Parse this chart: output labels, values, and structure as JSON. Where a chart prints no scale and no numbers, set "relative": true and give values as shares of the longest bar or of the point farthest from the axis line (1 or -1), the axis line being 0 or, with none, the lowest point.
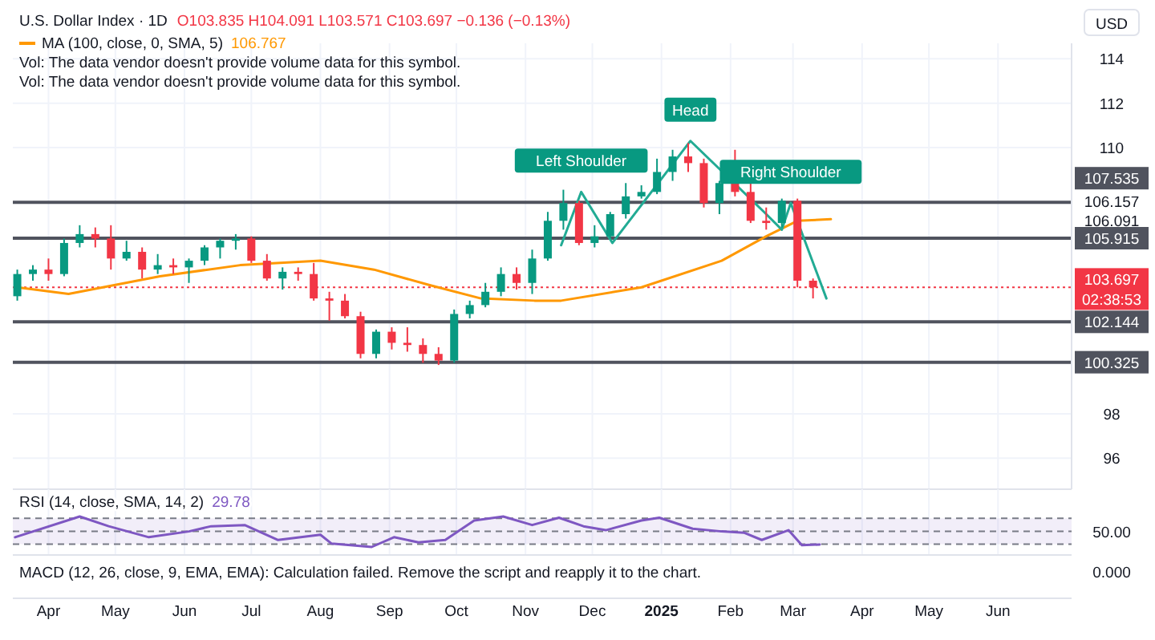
{
  "chart_data": [
    {
      "type": "candlestick",
      "title": "U.S. Dollar Index · 1D",
      "ylabel": "USD",
      "annotations": [
        "O103.835 H104.091 L103.571 C103.697 −0.136 (−0.13%)",
        "106.767",
        "Vol: The data vendor doesn't provide volume data for this symbol.",
        "Vol: The data vendor doesn't provide volume data for this symbol.",
        "106.157",
        "106.091",
        "02:38:53",
        {
          "text": "Left Shoulder",
          "x": "2024-11-26",
          "y": 108.0
        },
        {
          "text": "Head",
          "x": "2025-01-14",
          "y": 110.3
        },
        {
          "text": "Right Shoulder",
          "x": "2025-02-28",
          "y": 107.5
        }
      ],
      "x": [
        "2024-03-18",
        "2024-03-25",
        "2024-04-01",
        "2024-04-08",
        "2024-04-15",
        "2024-04-22",
        "2024-04-29",
        "2024-05-06",
        "2024-05-13",
        "2024-05-20",
        "2024-05-27",
        "2024-06-03",
        "2024-06-10",
        "2024-06-17",
        "2024-06-24",
        "2024-07-01",
        "2024-07-08",
        "2024-07-15",
        "2024-07-22",
        "2024-07-29",
        "2024-08-05",
        "2024-08-12",
        "2024-08-19",
        "2024-08-26",
        "2024-09-02",
        "2024-09-09",
        "2024-09-16",
        "2024-09-23",
        "2024-09-30",
        "2024-10-07",
        "2024-10-14",
        "2024-10-21",
        "2024-10-28",
        "2024-11-04",
        "2024-11-11",
        "2024-11-18",
        "2024-11-25",
        "2024-12-02",
        "2024-12-09",
        "2024-12-16",
        "2024-12-23",
        "2024-12-30",
        "2025-01-06",
        "2025-01-13",
        "2025-01-20",
        "2025-01-27",
        "2025-02-03",
        "2025-02-10",
        "2025-02-17",
        "2025-02-24",
        "2025-03-03",
        "2025-03-10"
      ],
      "ohlc": [
        [
          103.3,
          104.5,
          103.1,
          104.3
        ],
        [
          104.3,
          104.7,
          104.0,
          104.5
        ],
        [
          104.5,
          105.0,
          104.0,
          104.3
        ],
        [
          104.3,
          105.9,
          104.2,
          105.7
        ],
        [
          105.7,
          106.5,
          105.5,
          106.1
        ],
        [
          106.1,
          106.4,
          105.5,
          105.9
        ],
        [
          105.9,
          106.5,
          104.5,
          105.0
        ],
        [
          105.0,
          105.8,
          104.9,
          105.3
        ],
        [
          105.3,
          105.5,
          104.1,
          104.5
        ],
        [
          104.5,
          105.2,
          104.3,
          104.7
        ],
        [
          104.7,
          105.0,
          104.3,
          104.6
        ],
        [
          104.6,
          105.0,
          103.9,
          104.9
        ],
        [
          104.9,
          105.6,
          104.7,
          105.5
        ],
        [
          105.5,
          105.9,
          105.0,
          105.8
        ],
        [
          105.8,
          106.1,
          105.4,
          105.9
        ],
        [
          105.9,
          106.0,
          104.8,
          104.9
        ],
        [
          104.9,
          105.2,
          104.0,
          104.1
        ],
        [
          104.1,
          104.6,
          103.6,
          104.4
        ],
        [
          104.4,
          104.6,
          104.0,
          104.3
        ],
        [
          104.3,
          104.8,
          103.1,
          103.2
        ],
        [
          103.2,
          103.5,
          102.2,
          103.1
        ],
        [
          103.1,
          103.4,
          102.3,
          102.4
        ],
        [
          102.4,
          102.6,
          100.5,
          100.7
        ],
        [
          100.7,
          101.8,
          100.5,
          101.7
        ],
        [
          101.7,
          101.9,
          100.9,
          101.2
        ],
        [
          101.2,
          101.9,
          100.8,
          101.1
        ],
        [
          101.1,
          101.4,
          100.3,
          100.7
        ],
        [
          100.7,
          101.0,
          100.2,
          100.4
        ],
        [
          100.4,
          102.7,
          100.3,
          102.5
        ],
        [
          102.5,
          103.1,
          102.3,
          102.9
        ],
        [
          102.9,
          103.9,
          102.8,
          103.5
        ],
        [
          103.5,
          104.6,
          103.3,
          104.3
        ],
        [
          104.3,
          104.6,
          103.6,
          103.9
        ],
        [
          103.9,
          105.4,
          103.4,
          105.0
        ],
        [
          105.0,
          107.1,
          104.9,
          106.7
        ],
        [
          106.7,
          108.1,
          106.3,
          107.5
        ],
        [
          107.5,
          107.6,
          105.6,
          105.7
        ],
        [
          105.7,
          106.5,
          105.5,
          106.0
        ],
        [
          106.0,
          107.1,
          105.9,
          107.0
        ],
        [
          107.0,
          108.4,
          106.8,
          107.8
        ],
        [
          107.8,
          108.3,
          107.7,
          108.0
        ],
        [
          108.0,
          109.5,
          107.9,
          108.9
        ],
        [
          108.9,
          109.9,
          108.5,
          109.6
        ],
        [
          109.6,
          110.2,
          108.9,
          109.3
        ],
        [
          109.3,
          109.5,
          107.3,
          107.5
        ],
        [
          107.5,
          108.5,
          107.0,
          108.4
        ],
        [
          108.4,
          109.9,
          107.8,
          108.0
        ],
        [
          108.0,
          108.5,
          106.6,
          106.7
        ],
        [
          106.7,
          107.3,
          106.3,
          106.6
        ],
        [
          106.6,
          107.7,
          106.4,
          107.6
        ],
        [
          107.6,
          107.7,
          103.7,
          104.0
        ],
        [
          104.0,
          104.1,
          103.2,
          103.7
        ]
      ],
      "colors": [
        "#089981",
        "#089981",
        "#f23645",
        "#089981",
        "#089981",
        "#f23645",
        "#f23645",
        "#089981",
        "#f23645",
        "#089981",
        "#f23645",
        "#089981",
        "#089981",
        "#089981",
        "#089981",
        "#f23645",
        "#f23645",
        "#089981",
        "#f23645",
        "#f23645",
        "#f23645",
        "#f23645",
        "#f23645",
        "#089981",
        "#f23645",
        "#f23645",
        "#f23645",
        "#f23645",
        "#089981",
        "#089981",
        "#089981",
        "#089981",
        "#f23645",
        "#089981",
        "#089981",
        "#089981",
        "#f23645",
        "#089981",
        "#089981",
        "#089981",
        "#089981",
        "#089981",
        "#089981",
        "#f23645",
        "#f23645",
        "#089981",
        "#f23645",
        "#f23645",
        "#f23645",
        "#089981",
        "#f23645",
        "#f23645"
      ],
      "series": [
        {
          "type": "line",
          "name": "MA (100, close, 0, SMA, 5)",
          "color": "#ff9800",
          "x": [
            "2024-03-18",
            "2024-04-10",
            "2024-05-21",
            "2024-06-26",
            "2024-08-01",
            "2024-08-25",
            "2024-09-19",
            "2024-10-12",
            "2024-11-05",
            "2024-11-17",
            "2024-12-23",
            "2025-01-28",
            "2025-02-17",
            "2025-03-03",
            "2025-03-18"
          ],
          "values": [
            103.7,
            103.4,
            104.2,
            104.7,
            104.9,
            104.5,
            103.8,
            103.2,
            103.1,
            103.1,
            103.7,
            104.9,
            106.0,
            106.7,
            106.77
          ]
        },
        {
          "type": "line",
          "color": "#22ab94",
          "x": [
            "2024-11-17",
            "2024-11-26",
            "2024-12-10",
            "2025-01-14",
            "2025-02-16",
            "2025-02-24",
            "2025-02-28",
            "2025-03-16"
          ],
          "values": [
            105.6,
            108.0,
            105.7,
            110.3,
            107.1,
            106.3,
            107.5,
            103.2
          ]
        }
      ],
      "ref_lines": [
        {
          "axis": "y",
          "value": 107.535,
          "label": "107.535",
          "color": "#50535e",
          "line_style": "solid"
        },
        {
          "axis": "y",
          "value": 105.915,
          "label": "105.915",
          "color": "#50535e",
          "line_style": "solid"
        },
        {
          "axis": "y",
          "value": 103.697,
          "label": "103.697",
          "color": "#f23645",
          "line_style": "dotted"
        },
        {
          "axis": "y",
          "value": 102.144,
          "label": "102.144",
          "color": "#50535e",
          "line_style": "solid"
        },
        {
          "axis": "y",
          "value": 100.325,
          "label": "100.325",
          "color": "#50535e",
          "line_style": "solid"
        }
      ],
      "xlim": [
        "2024-03-16",
        "2025-07-04"
      ],
      "xticks": [
        {
          "value": "2024-04-01",
          "label": "Apr"
        },
        {
          "value": "2024-05-01",
          "label": "May"
        },
        {
          "value": "2024-06-01",
          "label": "Jun"
        },
        {
          "value": "2024-07-01",
          "label": "Jul"
        },
        {
          "value": "2024-08-01",
          "label": "Aug"
        },
        {
          "value": "2024-09-01",
          "label": "Sep"
        },
        {
          "value": "2024-10-01",
          "label": "Oct"
        },
        {
          "value": "2024-11-01",
          "label": "Nov"
        },
        {
          "value": "2024-12-01",
          "label": "Dec"
        },
        {
          "value": "2025-01-01",
          "label": "2025"
        },
        {
          "value": "2025-02-01",
          "label": "Feb"
        },
        {
          "value": "2025-03-01",
          "label": "Mar"
        },
        {
          "value": "2025-04-01",
          "label": "Apr"
        },
        {
          "value": "2025-05-01",
          "label": "May"
        },
        {
          "value": "2025-06-01",
          "label": "Jun"
        }
      ],
      "ylim": [
        94.6,
        114.7
      ],
      "yticks": [
        96,
        98,
        110,
        112,
        114
      ],
      "grid": true,
      "legend": "top left"
    },
    {
      "type": "line",
      "series": [
        {
          "name": "RSI (14, close, SMA, 14, 2)",
          "color": "#7e57c2",
          "x": [
            "2024-03-17",
            "2024-04-15",
            "2024-04-28",
            "2024-05-16",
            "2024-06-03",
            "2024-06-13",
            "2024-06-28",
            "2024-07-13",
            "2024-08-01",
            "2024-08-06",
            "2024-08-24",
            "2024-09-03",
            "2024-09-14",
            "2024-09-26",
            "2024-10-09",
            "2024-10-22",
            "2024-11-04",
            "2024-11-16",
            "2024-11-27",
            "2024-12-07",
            "2024-12-23",
            "2024-12-31",
            "2025-01-15",
            "2025-01-28",
            "2025-02-07",
            "2025-02-15",
            "2025-02-27",
            "2025-03-05",
            "2025-03-13"
          ],
          "values": [
            0.32,
            1,
            0.68,
            0.32,
            0.51,
            0.68,
            0.72,
            0.23,
            0.4,
            0.11,
            0,
            0.32,
            0.15,
            0.23,
            0.87,
            1,
            0.72,
            0.96,
            0.68,
            0.55,
            0.87,
            0.96,
            0.6,
            0.51,
            0.47,
            0.23,
            0.55,
            0.06,
            0.08
          ]
        }
      ],
      "relative": true,
      "annotations": [
        "29.78",
        "50.00"
      ],
      "bands": [
        {
          "axis": "y",
          "from": 0.09,
          "to": 0.94,
          "color": "#7e57c2"
        }
      ],
      "ref_lines": [
        {
          "axis": "y",
          "value": 0.94,
          "line_style": "dashed",
          "color": "#787b86"
        },
        {
          "axis": "y",
          "value": 0.51,
          "line_style": "dashed",
          "color": "#787b86"
        },
        {
          "axis": "y",
          "value": 0.09,
          "line_style": "dashed",
          "color": "#787b86"
        }
      ],
      "xlim": [
        "2024-03-16",
        "2025-07-04"
      ],
      "tick_labels": false,
      "grid": "x",
      "legend": "top left"
    },
    {
      "type": "other",
      "annotations": [
        "MACD (12, 26, close, 9, EMA, EMA): Calculation failed. Remove the script and reapply it to the chart.",
        "0.000"
      ]
    }
  ]
}
